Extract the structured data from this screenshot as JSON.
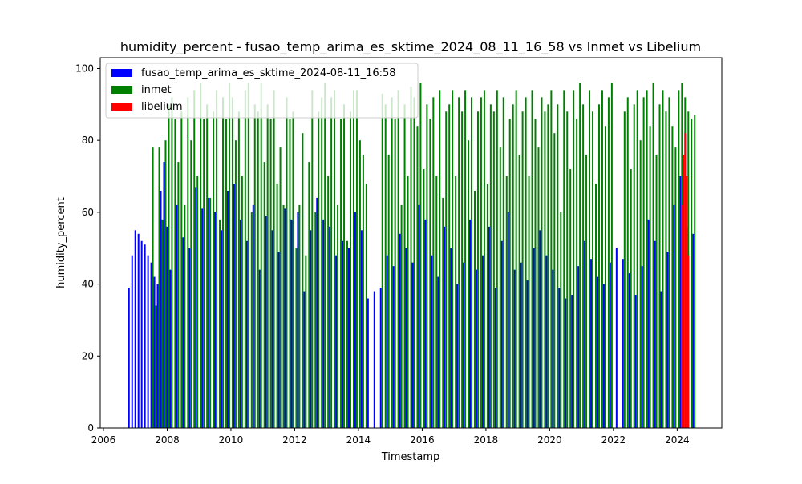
{
  "chart_data": {
    "type": "bar",
    "title": "humidity_percent - fusao_temp_arima_es_sktime_2024_08_11_16_58 vs Inmet vs Libelium",
    "xlabel": "Timestamp",
    "ylabel": "humidity_percent",
    "xlim": [
      2005.9,
      2025.4
    ],
    "ylim": [
      0,
      103
    ],
    "x_ticks": [
      2006,
      2008,
      2010,
      2012,
      2014,
      2016,
      2018,
      2020,
      2022,
      2024
    ],
    "x_tick_labels": [
      "2006",
      "2008",
      "2010",
      "2012",
      "2014",
      "2016",
      "2018",
      "2020",
      "2022",
      "2024"
    ],
    "y_ticks": [
      0,
      20,
      40,
      60,
      80,
      100
    ],
    "y_tick_labels": [
      "0",
      "20",
      "40",
      "60",
      "80",
      "100"
    ],
    "legend_position": "top-left",
    "bar_width_years": 0.05,
    "series": [
      {
        "name": "fusao_temp_arima_es_sktime_2024-08-11_16:58",
        "color": "#0000ff",
        "x": [
          2006.8,
          2006.9,
          2007.0,
          2007.1,
          2007.2,
          2007.3,
          2007.4,
          2007.5,
          2007.6,
          2007.7,
          2007.8,
          2007.9,
          2008.0,
          2008.1,
          2008.3,
          2008.5,
          2008.7,
          2008.9,
          2009.1,
          2009.3,
          2009.5,
          2009.7,
          2009.9,
          2010.1,
          2010.3,
          2010.5,
          2010.7,
          2010.9,
          2011.1,
          2011.3,
          2011.5,
          2011.7,
          2011.9,
          2012.1,
          2012.3,
          2012.5,
          2012.7,
          2012.9,
          2013.1,
          2013.3,
          2013.5,
          2013.7,
          2013.9,
          2014.1,
          2014.3,
          2014.5,
          2014.7,
          2014.9,
          2015.1,
          2015.3,
          2015.5,
          2015.7,
          2015.9,
          2016.1,
          2016.3,
          2016.5,
          2016.7,
          2016.9,
          2017.1,
          2017.3,
          2017.5,
          2017.7,
          2017.9,
          2018.1,
          2018.3,
          2018.5,
          2018.7,
          2018.9,
          2019.1,
          2019.3,
          2019.5,
          2019.7,
          2019.9,
          2020.1,
          2020.3,
          2020.5,
          2020.7,
          2020.9,
          2021.1,
          2021.3,
          2021.5,
          2021.7,
          2021.9,
          2022.1,
          2022.3,
          2022.5,
          2022.7,
          2022.9,
          2023.1,
          2023.3,
          2023.5,
          2023.7,
          2023.9,
          2024.1,
          2024.3,
          2024.5
        ],
        "values": [
          39,
          48,
          55,
          54,
          52,
          51,
          48,
          46,
          42,
          40,
          66,
          74,
          56,
          44,
          62,
          53,
          50,
          67,
          61,
          64,
          60,
          55,
          66,
          68,
          58,
          52,
          62,
          44,
          59,
          55,
          49,
          61,
          58,
          60,
          38,
          55,
          64,
          58,
          56,
          48,
          52,
          50,
          60,
          55,
          36,
          38,
          39,
          48,
          45,
          54,
          50,
          46,
          62,
          58,
          48,
          42,
          56,
          50,
          40,
          46,
          58,
          44,
          48,
          56,
          39,
          52,
          60,
          44,
          46,
          41,
          50,
          55,
          48,
          44,
          39,
          36,
          37,
          45,
          52,
          47,
          42,
          40,
          46,
          50,
          47,
          43,
          37,
          45,
          58,
          52,
          38,
          49,
          62,
          70,
          56,
          54
        ]
      },
      {
        "name": "inmet",
        "color": "#008000",
        "x": [
          2007.55,
          2007.65,
          2007.75,
          2007.85,
          2007.95,
          2008.05,
          2008.15,
          2008.25,
          2008.35,
          2008.45,
          2008.55,
          2008.65,
          2008.75,
          2008.85,
          2008.95,
          2009.05,
          2009.15,
          2009.25,
          2009.35,
          2009.45,
          2009.55,
          2009.65,
          2009.75,
          2009.85,
          2009.95,
          2010.05,
          2010.15,
          2010.25,
          2010.35,
          2010.45,
          2010.55,
          2010.65,
          2010.75,
          2010.85,
          2010.95,
          2011.05,
          2011.15,
          2011.25,
          2011.35,
          2011.45,
          2011.55,
          2011.65,
          2011.75,
          2011.85,
          2011.95,
          2012.05,
          2012.15,
          2012.25,
          2012.35,
          2012.45,
          2012.55,
          2012.65,
          2012.75,
          2012.85,
          2012.95,
          2013.05,
          2013.15,
          2013.25,
          2013.35,
          2013.45,
          2013.55,
          2013.65,
          2013.75,
          2013.85,
          2013.95,
          2014.05,
          2014.15,
          2014.25,
          2014.75,
          2014.85,
          2014.95,
          2015.05,
          2015.15,
          2015.25,
          2015.35,
          2015.45,
          2015.55,
          2015.65,
          2015.75,
          2015.85,
          2015.95,
          2016.05,
          2016.15,
          2016.25,
          2016.35,
          2016.45,
          2016.55,
          2016.65,
          2016.75,
          2016.85,
          2016.95,
          2017.05,
          2017.15,
          2017.25,
          2017.35,
          2017.45,
          2017.55,
          2017.65,
          2017.75,
          2017.85,
          2017.95,
          2018.05,
          2018.15,
          2018.25,
          2018.35,
          2018.45,
          2018.55,
          2018.65,
          2018.75,
          2018.85,
          2018.95,
          2019.05,
          2019.15,
          2019.25,
          2019.35,
          2019.45,
          2019.55,
          2019.65,
          2019.75,
          2019.85,
          2019.95,
          2020.05,
          2020.15,
          2020.25,
          2020.35,
          2020.45,
          2020.55,
          2020.65,
          2020.75,
          2020.85,
          2020.95,
          2021.05,
          2021.15,
          2021.25,
          2021.35,
          2021.45,
          2021.55,
          2021.65,
          2021.75,
          2021.85,
          2021.95,
          2022.35,
          2022.45,
          2022.55,
          2022.65,
          2022.75,
          2022.85,
          2022.95,
          2023.05,
          2023.15,
          2023.25,
          2023.35,
          2023.45,
          2023.55,
          2023.65,
          2023.75,
          2023.85,
          2023.95,
          2024.05,
          2024.15,
          2024.25,
          2024.35,
          2024.45,
          2024.55
        ],
        "values": [
          78,
          34,
          78,
          58,
          80,
          90,
          92,
          86,
          74,
          88,
          62,
          92,
          80,
          94,
          70,
          96,
          86,
          90,
          64,
          88,
          94,
          58,
          92,
          86,
          96,
          92,
          80,
          88,
          70,
          94,
          96,
          60,
          90,
          88,
          96,
          74,
          90,
          86,
          94,
          68,
          78,
          62,
          92,
          86,
          88,
          50,
          62,
          82,
          48,
          74,
          94,
          60,
          88,
          92,
          96,
          70,
          92,
          94,
          62,
          86,
          90,
          52,
          88,
          94,
          94,
          80,
          76,
          68,
          93,
          90,
          76,
          92,
          86,
          94,
          62,
          90,
          70,
          95,
          92,
          84,
          96,
          72,
          90,
          86,
          92,
          70,
          94,
          64,
          88,
          90,
          94,
          70,
          92,
          88,
          94,
          80,
          92,
          66,
          88,
          92,
          94,
          68,
          90,
          88,
          94,
          78,
          92,
          70,
          86,
          90,
          94,
          76,
          88,
          92,
          70,
          94,
          86,
          78,
          92,
          88,
          90,
          94,
          82,
          90,
          60,
          94,
          88,
          72,
          94,
          86,
          96,
          90,
          76,
          94,
          88,
          68,
          90,
          94,
          84,
          92,
          96,
          88,
          92,
          72,
          90,
          94,
          80,
          92,
          94,
          84,
          96,
          76,
          90,
          94,
          88,
          92,
          84,
          78,
          94,
          96,
          92,
          88,
          86,
          87
        ]
      },
      {
        "name": "libelium",
        "color": "#ff0000",
        "x": [
          2024.15,
          2024.2,
          2024.25,
          2024.3,
          2024.35
        ],
        "values": [
          62,
          76,
          82,
          70,
          48
        ]
      }
    ]
  }
}
